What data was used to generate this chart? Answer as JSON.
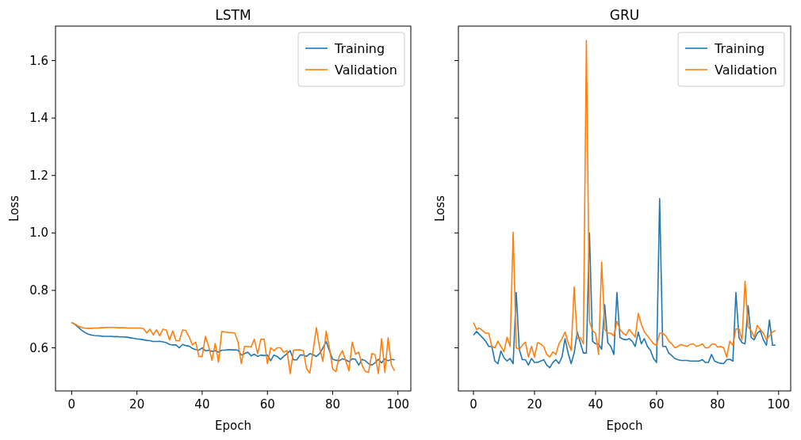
{
  "chart_data": [
    {
      "type": "line",
      "title": "LSTM",
      "xlabel": "Epoch",
      "ylabel": "Loss",
      "xlim": [
        -4.95,
        103.95
      ],
      "ylim": [
        0.45,
        1.72
      ],
      "xticks": [
        0,
        20,
        40,
        60,
        80,
        100
      ],
      "yticks": [
        {
          "value": 0.6,
          "label": "0.6"
        },
        {
          "value": 0.8,
          "label": "0.8"
        },
        {
          "value": 1.0,
          "label": "1.0"
        },
        {
          "value": 1.2,
          "label": "1.2"
        },
        {
          "value": 1.4,
          "label": "1.4"
        },
        {
          "value": 1.6,
          "label": "1.6"
        }
      ],
      "legend": "top right",
      "grid": false,
      "x": [
        0,
        1,
        2,
        3,
        4,
        5,
        6,
        7,
        8,
        9,
        10,
        11,
        12,
        13,
        14,
        15,
        16,
        17,
        18,
        19,
        20,
        21,
        22,
        23,
        24,
        25,
        26,
        27,
        28,
        29,
        30,
        31,
        32,
        33,
        34,
        35,
        36,
        37,
        38,
        39,
        40,
        41,
        42,
        43,
        44,
        45,
        46,
        47,
        48,
        49,
        50,
        51,
        52,
        53,
        54,
        55,
        56,
        57,
        58,
        59,
        60,
        61,
        62,
        63,
        64,
        65,
        66,
        67,
        68,
        69,
        70,
        71,
        72,
        73,
        74,
        75,
        76,
        77,
        78,
        79,
        80,
        81,
        82,
        83,
        84,
        85,
        86,
        87,
        88,
        89,
        90,
        91,
        92,
        93,
        94,
        95,
        96,
        97,
        98,
        99
      ],
      "series": [
        {
          "name": "Training",
          "color": "#1f77b4",
          "values": [
            0.688,
            0.682,
            0.672,
            0.662,
            0.654,
            0.648,
            0.645,
            0.643,
            0.642,
            0.641,
            0.64,
            0.64,
            0.64,
            0.639,
            0.639,
            0.638,
            0.638,
            0.637,
            0.635,
            0.633,
            0.631,
            0.63,
            0.628,
            0.626,
            0.625,
            0.622,
            0.622,
            0.623,
            0.621,
            0.618,
            0.612,
            0.61,
            0.61,
            0.6,
            0.612,
            0.608,
            0.606,
            0.598,
            0.594,
            0.592,
            0.6,
            0.59,
            0.592,
            0.588,
            0.59,
            0.585,
            0.592,
            0.592,
            0.594,
            0.593,
            0.593,
            0.592,
            0.575,
            0.58,
            0.585,
            0.572,
            0.578,
            0.57,
            0.575,
            0.573,
            0.575,
            0.555,
            0.575,
            0.57,
            0.56,
            0.57,
            0.58,
            0.59,
            0.558,
            0.558,
            0.575,
            0.575,
            0.57,
            0.58,
            0.576,
            0.57,
            0.58,
            0.6,
            0.622,
            0.59,
            0.56,
            0.557,
            0.555,
            0.562,
            0.558,
            0.552,
            0.562,
            0.56,
            0.54,
            0.56,
            0.555,
            0.545,
            0.54,
            0.548,
            0.56,
            0.548,
            0.562,
            0.555,
            0.56,
            0.558
          ]
        },
        {
          "name": "Validation",
          "color": "#ff7f0e",
          "values": [
            0.688,
            0.683,
            0.676,
            0.671,
            0.669,
            0.668,
            0.668,
            0.669,
            0.669,
            0.67,
            0.67,
            0.671,
            0.671,
            0.671,
            0.67,
            0.67,
            0.67,
            0.669,
            0.669,
            0.669,
            0.669,
            0.669,
            0.667,
            0.652,
            0.665,
            0.645,
            0.663,
            0.642,
            0.665,
            0.662,
            0.628,
            0.659,
            0.625,
            0.625,
            0.662,
            0.66,
            0.638,
            0.61,
            0.62,
            0.57,
            0.57,
            0.64,
            0.605,
            0.557,
            0.615,
            0.55,
            0.657,
            0.655,
            0.653,
            0.653,
            0.652,
            0.62,
            0.545,
            0.605,
            0.605,
            0.603,
            0.63,
            0.58,
            0.63,
            0.63,
            0.545,
            0.6,
            0.59,
            0.6,
            0.6,
            0.585,
            0.59,
            0.51,
            0.592,
            0.593,
            0.593,
            0.59,
            0.528,
            0.512,
            0.59,
            0.67,
            0.6,
            0.553,
            0.658,
            0.6,
            0.527,
            0.517,
            0.57,
            0.59,
            0.555,
            0.52,
            0.62,
            0.578,
            0.585,
            0.54,
            0.518,
            0.515,
            0.58,
            0.576,
            0.51,
            0.632,
            0.515,
            0.635,
            0.54,
            0.52
          ]
        }
      ]
    },
    {
      "type": "line",
      "title": "GRU",
      "xlabel": "Epoch",
      "ylabel": "Loss",
      "xlim": [
        -4.95,
        103.95
      ],
      "ylim": [
        0.45,
        1.72
      ],
      "xticks": [
        0,
        20,
        40,
        60,
        80,
        100
      ],
      "yticks": [
        {
          "value": 0.6,
          "label": null
        },
        {
          "value": 0.8,
          "label": null
        },
        {
          "value": 1.0,
          "label": null
        },
        {
          "value": 1.2,
          "label": null
        },
        {
          "value": 1.4,
          "label": null
        },
        {
          "value": 1.6,
          "label": null
        }
      ],
      "tick_labels": "x",
      "legend": "top right",
      "grid": false,
      "x": [
        0,
        1,
        2,
        3,
        4,
        5,
        6,
        7,
        8,
        9,
        10,
        11,
        12,
        13,
        14,
        15,
        16,
        17,
        18,
        19,
        20,
        21,
        22,
        23,
        24,
        25,
        26,
        27,
        28,
        29,
        30,
        31,
        32,
        33,
        34,
        35,
        36,
        37,
        38,
        39,
        40,
        41,
        42,
        43,
        44,
        45,
        46,
        47,
        48,
        49,
        50,
        51,
        52,
        53,
        54,
        55,
        56,
        57,
        58,
        59,
        60,
        61,
        62,
        63,
        64,
        65,
        66,
        67,
        68,
        69,
        70,
        71,
        72,
        73,
        74,
        75,
        76,
        77,
        78,
        79,
        80,
        81,
        82,
        83,
        84,
        85,
        86,
        87,
        88,
        89,
        90,
        91,
        92,
        93,
        94,
        95,
        96,
        97,
        98,
        99
      ],
      "series": [
        {
          "name": "Training",
          "color": "#1f77b4",
          "values": [
            0.644,
            0.657,
            0.646,
            0.635,
            0.623,
            0.605,
            0.605,
            0.554,
            0.545,
            0.589,
            0.565,
            0.554,
            0.563,
            0.545,
            0.793,
            0.595,
            0.559,
            0.559,
            0.54,
            0.563,
            0.549,
            0.549,
            0.554,
            0.559,
            0.54,
            0.531,
            0.549,
            0.559,
            0.545,
            0.568,
            0.632,
            0.582,
            0.545,
            0.582,
            0.655,
            0.618,
            0.582,
            0.582,
            1.0,
            0.623,
            0.614,
            0.614,
            0.595,
            0.75,
            0.618,
            0.605,
            0.577,
            0.793,
            0.636,
            0.63,
            0.628,
            0.632,
            0.623,
            0.605,
            0.655,
            0.614,
            0.632,
            0.605,
            0.591,
            0.563,
            0.549,
            1.12,
            0.605,
            0.605,
            0.582,
            0.573,
            0.563,
            0.559,
            0.556,
            0.556,
            0.556,
            0.554,
            0.554,
            0.554,
            0.554,
            0.559,
            0.549,
            0.549,
            0.577,
            0.554,
            0.549,
            0.546,
            0.545,
            0.559,
            0.56,
            0.554,
            0.793,
            0.636,
            0.618,
            0.614,
            0.747,
            0.636,
            0.628,
            0.651,
            0.66,
            0.628,
            0.609,
            0.697,
            0.609,
            0.609
          ]
        },
        {
          "name": "Validation",
          "color": "#ff7f0e",
          "values": [
            0.688,
            0.664,
            0.669,
            0.66,
            0.651,
            0.651,
            0.605,
            0.6,
            0.623,
            0.605,
            0.586,
            0.637,
            0.605,
            1.003,
            0.6,
            0.595,
            0.609,
            0.62,
            0.568,
            0.605,
            0.568,
            0.618,
            0.614,
            0.605,
            0.577,
            0.568,
            0.586,
            0.577,
            0.614,
            0.632,
            0.655,
            0.618,
            0.591,
            0.812,
            0.632,
            0.636,
            0.614,
            1.67,
            0.692,
            0.66,
            0.651,
            0.577,
            0.899,
            0.664,
            0.651,
            0.651,
            0.642,
            0.692,
            0.664,
            0.651,
            0.644,
            0.664,
            0.651,
            0.637,
            0.72,
            0.683,
            0.655,
            0.642,
            0.628,
            0.614,
            0.609,
            0.651,
            0.651,
            0.642,
            0.623,
            0.614,
            0.6,
            0.605,
            0.612,
            0.608,
            0.605,
            0.612,
            0.614,
            0.605,
            0.608,
            0.614,
            0.6,
            0.6,
            0.612,
            0.614,
            0.603,
            0.605,
            0.6,
            0.568,
            0.623,
            0.609,
            0.666,
            0.666,
            0.628,
            0.832,
            0.673,
            0.66,
            0.637,
            0.678,
            0.664,
            0.651,
            0.628,
            0.642,
            0.655,
            0.66
          ]
        }
      ]
    }
  ]
}
